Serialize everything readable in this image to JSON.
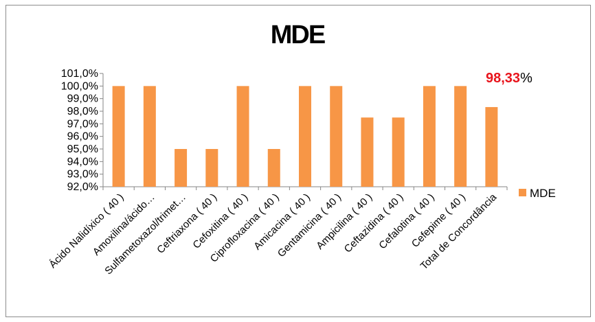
{
  "chart_data": {
    "type": "bar",
    "title": "MDE",
    "categories": [
      "Ácido Nalidíxico ( 40 )",
      "Amoxilina/ácido…",
      "Sulfametoxazol/trimet…",
      "Ceftriaxona ( 40 )",
      "Cefoxitina ( 40 )",
      "Ciprofloxacina ( 40 )",
      "Amicacina ( 40 )",
      "Gentamicina ( 40 )",
      "Ampicilina ( 40 )",
      "Ceftazidina ( 40 )",
      "Cefalotina ( 40 )",
      "Cefepime ( 40 )",
      "Total de Concordância"
    ],
    "series": [
      {
        "name": "MDE",
        "values": [
          100.0,
          100.0,
          95.0,
          95.0,
          100.0,
          95.0,
          100.0,
          100.0,
          97.5,
          97.5,
          100.0,
          100.0,
          98.33
        ]
      }
    ],
    "ylim": [
      92.0,
      101.0
    ],
    "yticks": [
      "92,0%",
      "93,0%",
      "94,0%",
      "95,0%",
      "96,0%",
      "97,0%",
      "98,0%",
      "99,0%",
      "100,0%",
      "101,0%"
    ],
    "xlabel": "",
    "ylabel": "",
    "legend": "right",
    "grid": false,
    "bar_color": "#f79646",
    "annotation": {
      "value": "98,33",
      "suffix": "%",
      "value_color": "#e8141c"
    }
  }
}
